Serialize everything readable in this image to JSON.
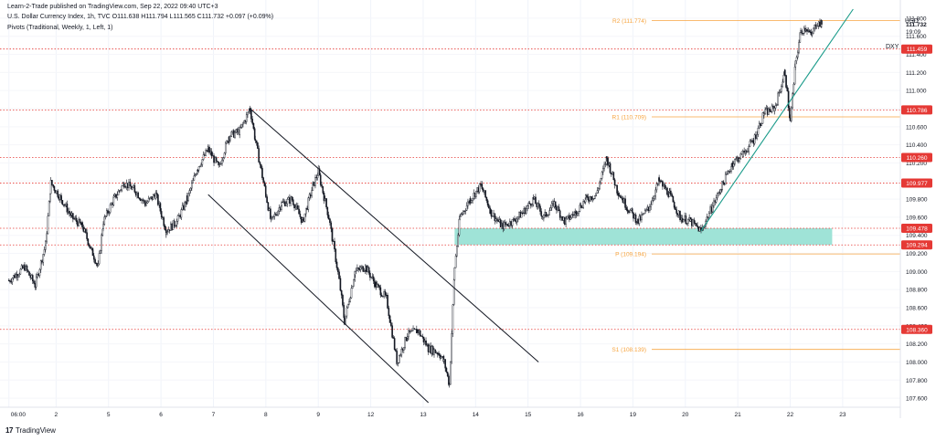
{
  "header": {
    "publisher": "Learn-2-Trade published on TradingView.com, Sep 22, 2022 09:40 UTC+3",
    "instrument": "U.S. Dollar Currency Index, 1h, TVC  O111.638  H111.794  L111.565  C111.732  +0.097 (+0.09%)",
    "indicator": "Pivots (Traditional, Weekly, 1, Left, 1)"
  },
  "footer": {
    "logo": "17",
    "brand": "TradingView"
  },
  "colors": {
    "candle": "#131722",
    "red_level": "#e53935",
    "pivot": "#f7a540",
    "trend": "#1a9b8a",
    "zone": "#9fe3d7",
    "channel": "#131722"
  },
  "chart_data": {
    "type": "candlestick",
    "currency_label": "USD",
    "symbol_label": "DXY",
    "ylim": [
      107.5,
      111.9
    ],
    "y_ticks": [
      "111.800",
      "111.600",
      "111.400",
      "111.200",
      "111.000",
      "110.800",
      "110.600",
      "110.400",
      "110.200",
      "110.000",
      "109.800",
      "109.600",
      "109.400",
      "109.200",
      "109.000",
      "108.800",
      "108.600",
      "108.400",
      "108.200",
      "108.000",
      "107.800",
      "107.600"
    ],
    "x_ticks": [
      {
        "label": "06:00",
        "pos": 0
      },
      {
        "label": "2",
        "pos": 9
      },
      {
        "label": "5",
        "pos": 19
      },
      {
        "label": "6",
        "pos": 29
      },
      {
        "label": "7",
        "pos": 39
      },
      {
        "label": "8",
        "pos": 49
      },
      {
        "label": "9",
        "pos": 59
      },
      {
        "label": "12",
        "pos": 69
      },
      {
        "label": "13",
        "pos": 79
      },
      {
        "label": "14",
        "pos": 89
      },
      {
        "label": "15",
        "pos": 99
      },
      {
        "label": "16",
        "pos": 109
      },
      {
        "label": "19",
        "pos": 119
      },
      {
        "label": "20",
        "pos": 129
      },
      {
        "label": "21",
        "pos": 139
      },
      {
        "label": "22",
        "pos": 149
      },
      {
        "label": "23",
        "pos": 159
      }
    ],
    "x_range": [
      -1,
      170
    ],
    "price_path": [
      [
        0,
        108.9
      ],
      [
        3,
        109.05
      ],
      [
        5,
        108.85
      ],
      [
        7,
        109.3
      ],
      [
        8,
        109.98
      ],
      [
        10,
        109.8
      ],
      [
        12,
        109.6
      ],
      [
        14,
        109.5
      ],
      [
        16,
        109.2
      ],
      [
        17,
        109.05
      ],
      [
        18,
        109.55
      ],
      [
        20,
        109.8
      ],
      [
        22,
        109.98
      ],
      [
        24,
        109.9
      ],
      [
        26,
        109.75
      ],
      [
        28,
        109.85
      ],
      [
        30,
        109.45
      ],
      [
        32,
        109.55
      ],
      [
        34,
        109.8
      ],
      [
        36,
        110.15
      ],
      [
        38,
        110.35
      ],
      [
        40,
        110.15
      ],
      [
        42,
        110.5
      ],
      [
        44,
        110.55
      ],
      [
        46,
        110.8
      ],
      [
        47,
        110.45
      ],
      [
        49,
        109.85
      ],
      [
        50,
        109.55
      ],
      [
        52,
        109.75
      ],
      [
        54,
        109.8
      ],
      [
        56,
        109.55
      ],
      [
        58,
        109.95
      ],
      [
        59,
        110.1
      ],
      [
        61,
        109.6
      ],
      [
        63,
        108.9
      ],
      [
        64,
        108.45
      ],
      [
        66,
        109.0
      ],
      [
        68,
        109.05
      ],
      [
        70,
        108.85
      ],
      [
        72,
        108.7
      ],
      [
        74,
        108.0
      ],
      [
        76,
        108.3
      ],
      [
        78,
        108.35
      ],
      [
        80,
        108.15
      ],
      [
        82,
        108.1
      ],
      [
        83,
        108.0
      ],
      [
        84,
        107.75
      ],
      [
        85,
        109.05
      ],
      [
        86,
        109.6
      ],
      [
        88,
        109.8
      ],
      [
        90,
        109.95
      ],
      [
        92,
        109.65
      ],
      [
        94,
        109.5
      ],
      [
        96,
        109.55
      ],
      [
        98,
        109.65
      ],
      [
        100,
        109.8
      ],
      [
        102,
        109.6
      ],
      [
        104,
        109.75
      ],
      [
        106,
        109.55
      ],
      [
        108,
        109.65
      ],
      [
        110,
        109.8
      ],
      [
        112,
        109.85
      ],
      [
        114,
        110.25
      ],
      [
        116,
        109.9
      ],
      [
        118,
        109.7
      ],
      [
        120,
        109.55
      ],
      [
        122,
        109.7
      ],
      [
        124,
        110.0
      ],
      [
        126,
        109.85
      ],
      [
        128,
        109.6
      ],
      [
        130,
        109.55
      ],
      [
        132,
        109.45
      ],
      [
        134,
        109.7
      ],
      [
        136,
        109.95
      ],
      [
        138,
        110.2
      ],
      [
        140,
        110.3
      ],
      [
        142,
        110.45
      ],
      [
        144,
        110.75
      ],
      [
        146,
        110.8
      ],
      [
        148,
        111.2
      ],
      [
        149,
        110.65
      ],
      [
        150,
        111.3
      ],
      [
        151,
        111.65
      ],
      [
        152,
        111.7
      ],
      [
        153,
        111.6
      ],
      [
        154,
        111.75
      ],
      [
        155,
        111.73
      ]
    ],
    "levels": [
      {
        "kind": "resistance",
        "value": 111.459,
        "label": "111.459"
      },
      {
        "kind": "resistance",
        "value": 110.786,
        "label": "110.786"
      },
      {
        "kind": "resistance",
        "value": 110.26,
        "label": "110.260"
      },
      {
        "kind": "resistance",
        "value": 109.977,
        "label": "109.977"
      },
      {
        "kind": "support",
        "value": 109.478,
        "label": "109.478"
      },
      {
        "kind": "support",
        "value": 109.294,
        "label": "109.294"
      },
      {
        "kind": "support",
        "value": 108.36,
        "label": "108.360"
      }
    ],
    "pivots": [
      {
        "name": "R2",
        "value": 111.774,
        "label": "R2 (111.774)"
      },
      {
        "name": "R1",
        "value": 110.709,
        "label": "R1 (110.709)"
      },
      {
        "name": "P",
        "value": 109.194,
        "label": "P (109.194)"
      },
      {
        "name": "S1",
        "value": 108.139,
        "label": "S1 (108.139)"
      }
    ],
    "last_price": {
      "value": 111.732,
      "label": "111.732",
      "countdown": "19:09"
    },
    "zone": {
      "from": 109.294,
      "to": 109.478,
      "x_from": 85,
      "x_to": 157
    },
    "channel_lines": [
      {
        "from": [
          46,
          110.8
        ],
        "to": [
          101,
          108.0
        ]
      },
      {
        "from": [
          38,
          109.85
        ],
        "to": [
          80,
          107.55
        ]
      }
    ],
    "trend_line": {
      "from": [
        132,
        109.45
      ],
      "to": [
        161,
        111.9
      ]
    }
  }
}
